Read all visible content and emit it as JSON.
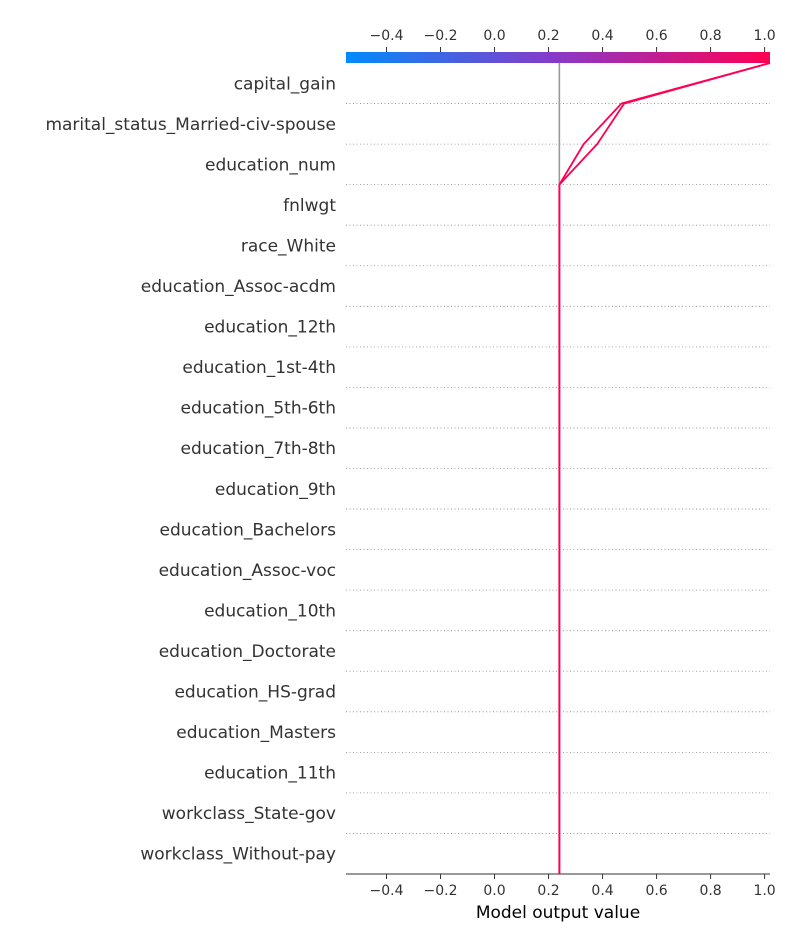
{
  "chart_data": {
    "type": "line",
    "plot_kind": "decision plot",
    "xlabel": "Model output value",
    "xlim": [
      -0.55,
      1.02
    ],
    "xticks": [
      -0.4,
      -0.2,
      0.0,
      0.2,
      0.4,
      0.6,
      0.8,
      1.0
    ],
    "xtick_labels": [
      "−0.4",
      "−0.2",
      "0.0",
      "0.2",
      "0.4",
      "0.6",
      "0.8",
      "1.0"
    ],
    "colorbar": {
      "position": "top",
      "colors": [
        "#008bfb",
        "#8a38c8",
        "#ff0052"
      ],
      "range": [
        -0.55,
        1.02
      ]
    },
    "base_value": 0.24,
    "base_line_color": "#999999",
    "line_color": "#ff0052",
    "features_top_to_bottom": [
      "capital_gain",
      "marital_status_Married-civ-spouse",
      "education_num",
      "fnlwgt",
      "race_White",
      "education_Assoc-acdm",
      "education_12th",
      "education_1st-4th",
      "education_5th-6th",
      "education_7th-8th",
      "education_9th",
      "education_Bachelors",
      "education_Assoc-voc",
      "education_10th",
      "education_Doctorate",
      "education_HS-grad",
      "education_Masters",
      "education_11th",
      "workclass_State-gov",
      "workclass_Without-pay"
    ],
    "series": [
      {
        "cumulative_values_bottom_to_top": [
          0.24,
          0.24,
          0.24,
          0.24,
          0.24,
          0.24,
          0.24,
          0.24,
          0.24,
          0.24,
          0.24,
          0.24,
          0.24,
          0.24,
          0.24,
          0.24,
          0.24,
          0.24,
          0.38,
          0.48,
          1.02
        ]
      },
      {
        "cumulative_values_bottom_to_top": [
          0.24,
          0.24,
          0.24,
          0.24,
          0.24,
          0.24,
          0.24,
          0.24,
          0.24,
          0.24,
          0.24,
          0.24,
          0.24,
          0.24,
          0.24,
          0.24,
          0.24,
          0.24,
          0.33,
          0.47,
          1.02
        ]
      }
    ]
  }
}
